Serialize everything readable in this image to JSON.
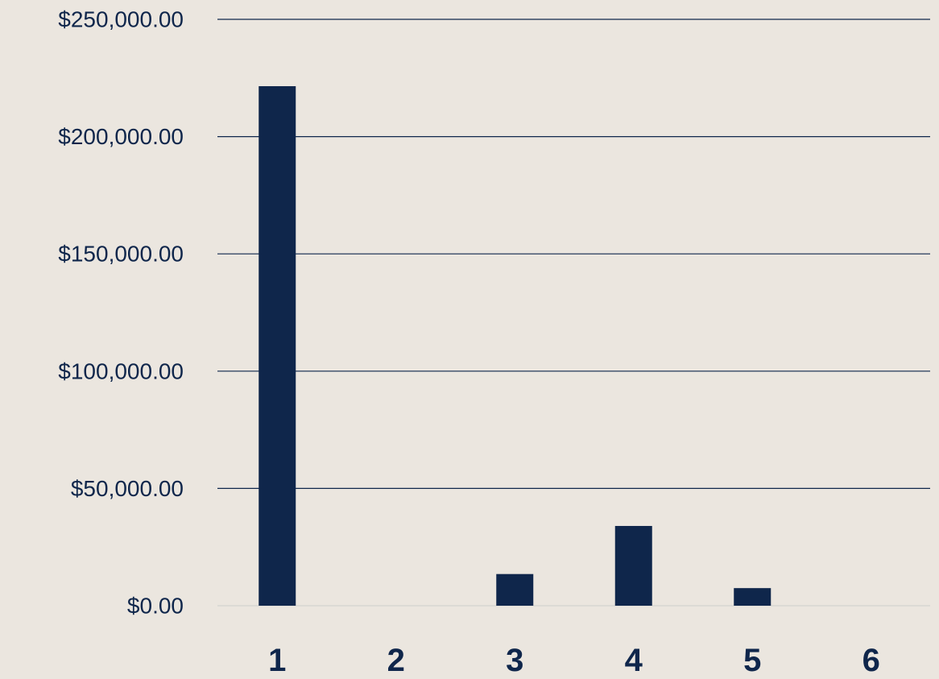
{
  "chart_data": {
    "type": "bar",
    "title": "",
    "xlabel": "",
    "ylabel": "",
    "categories": [
      "1",
      "2",
      "3",
      "4",
      "5",
      "6"
    ],
    "values": [
      221500,
      0,
      13500,
      34000,
      7500,
      0
    ],
    "ylim": [
      0,
      250000
    ],
    "y_ticks": [
      0,
      50000,
      100000,
      150000,
      200000,
      250000
    ],
    "y_tick_labels": [
      "$0.00",
      "$50,000.00",
      "$100,000.00",
      "$150,000.00",
      "$200,000.00",
      "$250,000.00"
    ],
    "grid": true,
    "legend": "none",
    "colors": {
      "bar": "#0f264b",
      "grid": "#0f264b",
      "text": "#0f264b",
      "background": "#ebe6df"
    }
  }
}
